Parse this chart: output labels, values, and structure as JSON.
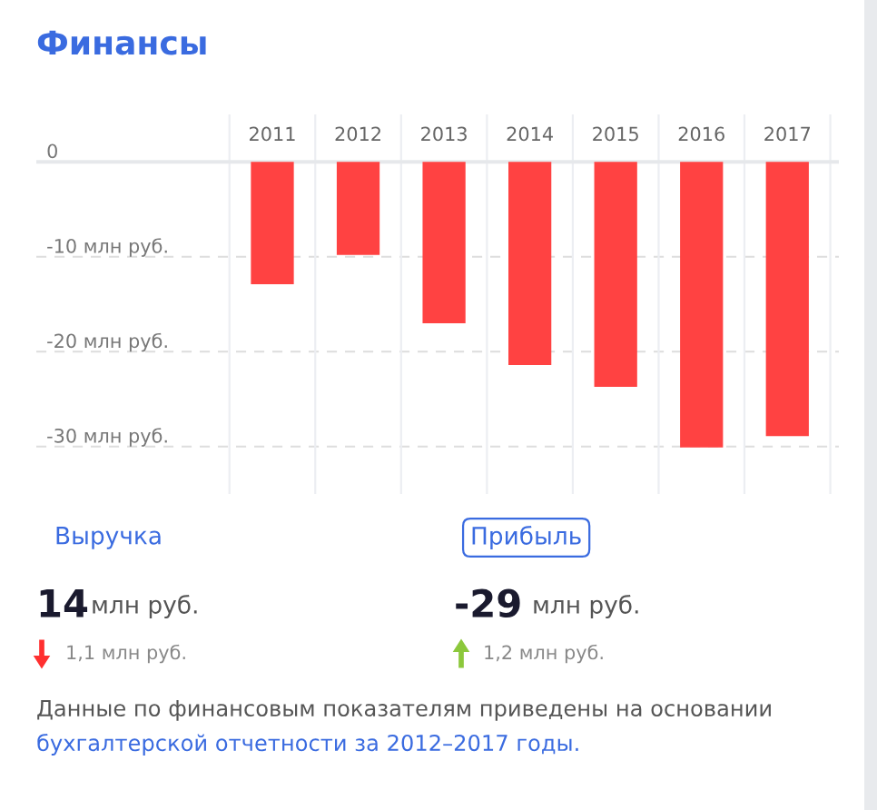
{
  "chart_data": {
    "type": "bar",
    "title": "Финансы",
    "categories": [
      "2011",
      "2012",
      "2013",
      "2014",
      "2015",
      "2016",
      "2017"
    ],
    "values": [
      -12.9,
      -9.8,
      -17.0,
      -21.4,
      -23.7,
      -30.1,
      -28.9
    ],
    "color": "#ff4242",
    "ylim": [
      -35,
      5
    ],
    "yticks": [
      {
        "value": -30,
        "label": "-30 млн руб."
      },
      {
        "value": -20,
        "label": "-20 млн руб."
      },
      {
        "value": -10,
        "label": "-10 млн руб."
      },
      0
    ],
    "grid": true,
    "annotations": [
      "Выручка",
      "Прибыль",
      "14",
      "млн руб.",
      "-29",
      "млн руб.",
      "1,1 млн руб.",
      "1,2 млн руб.",
      "Данные по финансовым показателям приведены на основании",
      "бухгалтерской отчетности за 2012–2017 годы."
    ]
  }
}
